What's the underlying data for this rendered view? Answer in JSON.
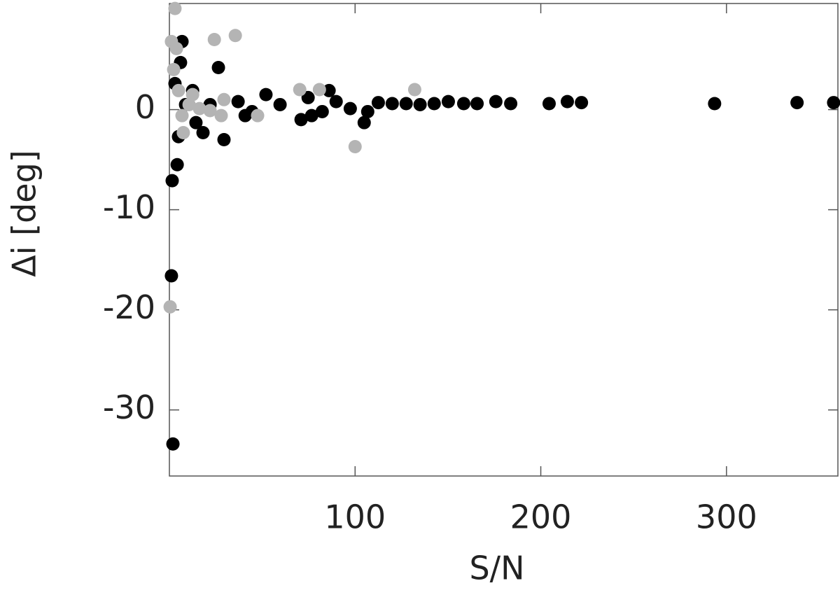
{
  "chart_data": {
    "type": "scatter",
    "x_label": "S/N",
    "y_label": "Δi  [deg]",
    "xlim": [
      0,
      360
    ],
    "ylim": [
      -36.6,
      10.6
    ],
    "xticks": [
      100,
      200,
      300
    ],
    "yticks": [
      -30,
      -20,
      -10,
      0
    ],
    "series": [
      {
        "color": "#000000",
        "x": [
          357.7,
          338,
          293.6,
          221.9,
          214.3,
          204.5,
          183.8,
          175.8,
          165.7,
          158.5,
          150.2,
          142.6,
          135,
          127.5,
          120,
          112.5,
          106.8,
          104.9,
          97.4,
          89.8,
          86,
          82.3,
          70.9,
          59.6,
          52,
          40.8,
          29.4,
          26.4,
          21.9,
          14.3,
          12.5,
          6.8,
          6,
          4.9,
          4.2,
          1.5,
          1.1,
          1.9,
          18.1,
          37,
          44.5,
          74.7,
          76.6,
          3,
          8.7
        ],
        "values": [
          0.7,
          0.7,
          0.6,
          0.7,
          0.8,
          0.6,
          0.6,
          0.8,
          0.6,
          0.6,
          0.8,
          0.6,
          0.5,
          0.6,
          0.6,
          0.7,
          -0.2,
          -1.3,
          0.1,
          0.8,
          1.9,
          -0.2,
          -1.0,
          0.5,
          1.5,
          -0.6,
          -3.0,
          4.2,
          0.5,
          -1.3,
          1.9,
          6.8,
          4.7,
          -2.7,
          -5.5,
          -7.1,
          -16.6,
          -33.4,
          -2.3,
          0.8,
          -0.2,
          1.2,
          -0.6,
          2.6,
          0.5
        ]
      },
      {
        "color": "#b4b4b4",
        "x": [
          3,
          24.2,
          35.5,
          70.2,
          80.8,
          132.1,
          100,
          47.5,
          27.9,
          29.4,
          6.8,
          2.3,
          4.9,
          12.5,
          16.2,
          7.5,
          1.1,
          3.8,
          0.4,
          10.6,
          21.9
        ],
        "values": [
          10.1,
          7.0,
          7.4,
          2.0,
          2.0,
          2.0,
          -3.7,
          -0.6,
          -0.6,
          1.0,
          -0.6,
          4.0,
          1.9,
          1.5,
          0.1,
          -2.3,
          6.8,
          6.1,
          -19.7,
          0.5,
          -0.1
        ]
      }
    ]
  }
}
